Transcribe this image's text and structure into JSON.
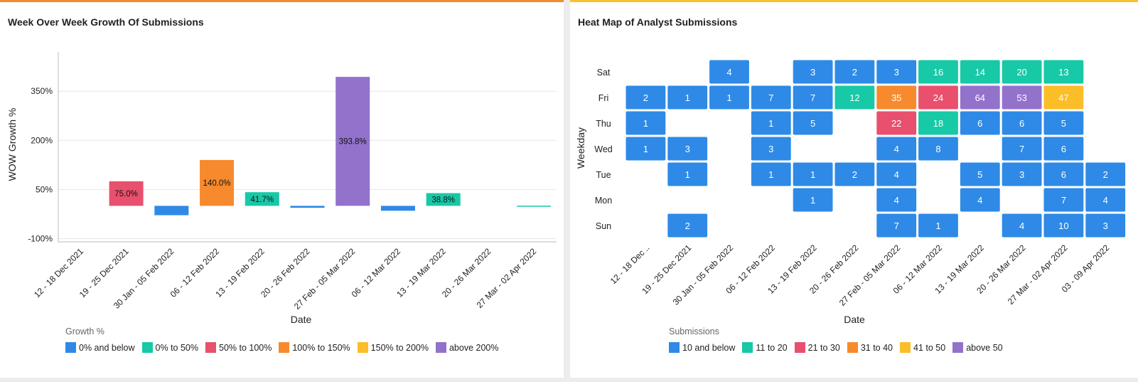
{
  "colors": {
    "blue": "#2e8ae6",
    "teal": "#17c9a6",
    "red": "#e8506e",
    "orange": "#f78a2c",
    "yellow": "#fbbd28",
    "purple": "#9372cc",
    "left_accent": "#f28b30",
    "right_accent": "#f7c12e"
  },
  "left_panel": {
    "title": "Week Over Week Growth Of Submissions",
    "legend_title": "Growth %",
    "legend": [
      {
        "label": "0% and below",
        "color": "blue"
      },
      {
        "label": "0% to 50%",
        "color": "teal"
      },
      {
        "label": "50% to 100%",
        "color": "red"
      },
      {
        "label": "100% to 150%",
        "color": "orange"
      },
      {
        "label": "150% to 200%",
        "color": "yellow"
      },
      {
        "label": "above 200%",
        "color": "purple"
      }
    ]
  },
  "right_panel": {
    "title": "Heat Map of Analyst Submissions",
    "legend_title": "Submissions",
    "legend": [
      {
        "label": "10 and below",
        "color": "blue"
      },
      {
        "label": "11 to 20",
        "color": "teal"
      },
      {
        "label": "21 to 30",
        "color": "red"
      },
      {
        "label": "31 to 40",
        "color": "orange"
      },
      {
        "label": "41 to 50",
        "color": "yellow"
      },
      {
        "label": "above 50",
        "color": "purple"
      }
    ]
  },
  "chart_data": [
    {
      "type": "bar",
      "xlabel": "Date",
      "ylabel": "WOW Growth %",
      "categories": [
        "12 - 18 Dec 2021",
        "19 - 25 Dec 2021",
        "30 Jan - 05 Feb 2022",
        "06 - 12 Feb 2022",
        "13 - 19 Feb 2022",
        "20 - 26 Feb 2022",
        "27 Feb - 05 Mar 2022",
        "06 - 12 Mar 2022",
        "13 - 19 Mar 2022",
        "20 - 26 Mar 2022",
        "27 Mar - 02 Apr 2022"
      ],
      "values": [
        null,
        75.0,
        -28.6,
        140.0,
        41.7,
        -5.9,
        393.8,
        -15.0,
        38.8,
        null,
        0.5
      ],
      "data_labels": [
        "",
        "75.0%",
        "",
        "140.0%",
        "41.7%",
        "",
        "393.8%",
        "",
        "38.8%",
        "",
        ""
      ],
      "y_ticks": [
        "350%",
        "200%",
        "50%",
        "-100%"
      ],
      "y_tick_values": [
        350,
        200,
        50,
        -100
      ],
      "ylim": [
        -110,
        470
      ],
      "grid": true
    },
    {
      "type": "heatmap",
      "xlabel": "Date",
      "ylabel": "Weekday",
      "x_labels": [
        "12 - 18 Dec ..",
        "19 - 25 Dec 2021",
        "30 Jan - 05 Feb 2022",
        "06 - 12 Feb 2022",
        "13 - 19 Feb 2022",
        "20 - 26 Feb 2022",
        "27 Feb - 05 Mar 2022",
        "06 - 12 Mar 2022",
        "13 - 19 Mar 2022",
        "20 - 26 Mar 2022",
        "27 Mar - 02 Apr 2022",
        "03 - 09 Apr 2022"
      ],
      "y_labels": [
        "Sat",
        "Fri",
        "Thu",
        "Wed",
        "Tue",
        "Mon",
        "Sun"
      ],
      "values": [
        [
          null,
          null,
          4,
          null,
          3,
          2,
          3,
          16,
          14,
          20,
          13,
          null
        ],
        [
          2,
          1,
          1,
          7,
          7,
          12,
          35,
          24,
          64,
          53,
          47,
          null
        ],
        [
          1,
          null,
          null,
          1,
          5,
          null,
          22,
          18,
          6,
          6,
          5,
          null
        ],
        [
          1,
          3,
          null,
          3,
          null,
          null,
          4,
          8,
          null,
          7,
          6,
          null
        ],
        [
          null,
          1,
          null,
          1,
          1,
          2,
          4,
          null,
          5,
          3,
          6,
          2
        ],
        [
          null,
          null,
          null,
          null,
          1,
          null,
          4,
          null,
          4,
          null,
          7,
          4
        ],
        [
          null,
          2,
          null,
          null,
          null,
          null,
          7,
          1,
          null,
          4,
          10,
          3
        ]
      ]
    }
  ]
}
